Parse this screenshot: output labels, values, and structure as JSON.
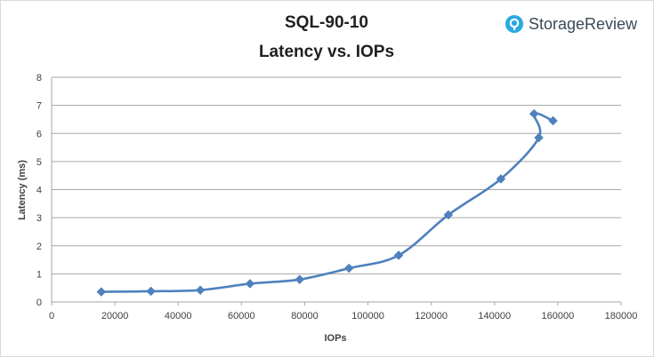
{
  "chart_data": {
    "type": "line",
    "title": "SQL-90-10",
    "subtitle": "Latency vs. IOPs",
    "xlabel": "IOPs",
    "ylabel": "Latency (ms)",
    "xlim": [
      0,
      180000
    ],
    "ylim": [
      0,
      8
    ],
    "xticks": [
      0,
      20000,
      40000,
      60000,
      80000,
      100000,
      120000,
      140000,
      160000,
      180000
    ],
    "yticks": [
      0,
      1,
      2,
      3,
      4,
      5,
      6,
      7,
      8
    ],
    "grid": "horizontal",
    "smooth": true,
    "marker": "diamond",
    "series": [
      {
        "color": "#4f81bd",
        "points": [
          {
            "x": 15700,
            "y": 0.36
          },
          {
            "x": 31400,
            "y": 0.38
          },
          {
            "x": 47000,
            "y": 0.42
          },
          {
            "x": 62700,
            "y": 0.65
          },
          {
            "x": 78400,
            "y": 0.8
          },
          {
            "x": 94000,
            "y": 1.2
          },
          {
            "x": 109700,
            "y": 1.66
          },
          {
            "x": 125400,
            "y": 3.1
          },
          {
            "x": 142000,
            "y": 4.38
          },
          {
            "x": 154000,
            "y": 5.85
          },
          {
            "x": 152500,
            "y": 6.7
          },
          {
            "x": 158500,
            "y": 6.45
          }
        ]
      }
    ]
  },
  "branding": {
    "logo_text": "StorageReview",
    "logo_icon": "storagereview-logo-icon",
    "icon_color": "#29a9e0"
  }
}
